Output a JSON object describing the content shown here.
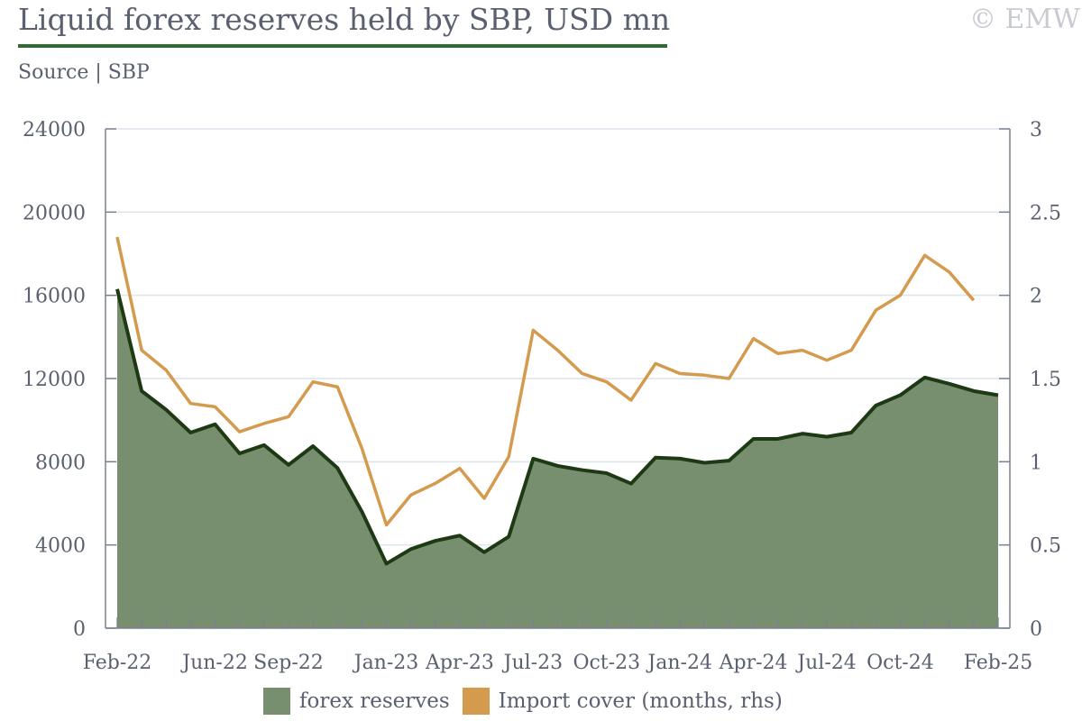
{
  "title": "Liquid forex reserves held by SBP, USD mn",
  "copyright": "© EMW",
  "source": "Source | SBP",
  "colors": {
    "area_fill": "#778f6e",
    "area_line": "#1e3a14",
    "import_line": "#d49a4e",
    "grid": "#dce4ec",
    "axis": "#7a8190",
    "title_rule": "#2e6b2e"
  },
  "chart_data": {
    "type": "area",
    "grid": true,
    "legend_position": "bottom",
    "x": [
      "Feb-22",
      "Mar-22",
      "Apr-22",
      "May-22",
      "Jun-22",
      "Jul-22",
      "Aug-22",
      "Sep-22",
      "Oct-22",
      "Nov-22",
      "Dec-22",
      "Jan-23",
      "Feb-23",
      "Mar-23",
      "Apr-23",
      "May-23",
      "Jun-23",
      "Jul-23",
      "Aug-23",
      "Sep-23",
      "Oct-23",
      "Nov-23",
      "Dec-23",
      "Jan-24",
      "Feb-24",
      "Mar-24",
      "Apr-24",
      "May-24",
      "Jun-24",
      "Jul-24",
      "Aug-24",
      "Sep-24",
      "Oct-24",
      "Nov-24",
      "Dec-24",
      "Jan-25",
      "Feb-25"
    ],
    "x_tick_labels": [
      "Feb-22",
      "Jun-22",
      "Sep-22",
      "Jan-23",
      "Apr-23",
      "Jul-23",
      "Oct-23",
      "Jan-24",
      "Apr-24",
      "Jul-24",
      "Oct-24",
      "Feb-25"
    ],
    "y_left": {
      "ticks": [
        0,
        4000,
        8000,
        12000,
        16000,
        20000,
        24000
      ],
      "range": [
        0,
        24000
      ]
    },
    "y_right": {
      "ticks": [
        "0",
        "0.5",
        "1",
        "1.5",
        "2",
        "2.5",
        "3"
      ],
      "range": [
        0,
        3
      ]
    },
    "series": [
      {
        "name": "forex reserves",
        "type": "area",
        "axis": "left",
        "values": [
          16300,
          11400,
          10500,
          9400,
          9800,
          8400,
          8800,
          7850,
          8750,
          7700,
          5600,
          3100,
          3800,
          4200,
          4450,
          3650,
          4400,
          8150,
          7800,
          7600,
          7450,
          6950,
          8200,
          8150,
          7950,
          8050,
          9100,
          9100,
          9350,
          9200,
          9400,
          10700,
          11200,
          12050,
          11750,
          11400,
          11200
        ]
      },
      {
        "name": "Import cover (months, rhs)",
        "type": "line",
        "axis": "right",
        "values": [
          2.35,
          1.67,
          1.55,
          1.35,
          1.33,
          1.18,
          1.23,
          1.27,
          1.48,
          1.45,
          1.08,
          0.62,
          0.8,
          0.87,
          0.96,
          0.78,
          1.03,
          1.79,
          1.67,
          1.53,
          1.48,
          1.37,
          1.59,
          1.53,
          1.52,
          1.5,
          1.74,
          1.65,
          1.67,
          1.61,
          1.67,
          1.91,
          2.0,
          2.24,
          2.14,
          1.97,
          null
        ]
      }
    ]
  }
}
